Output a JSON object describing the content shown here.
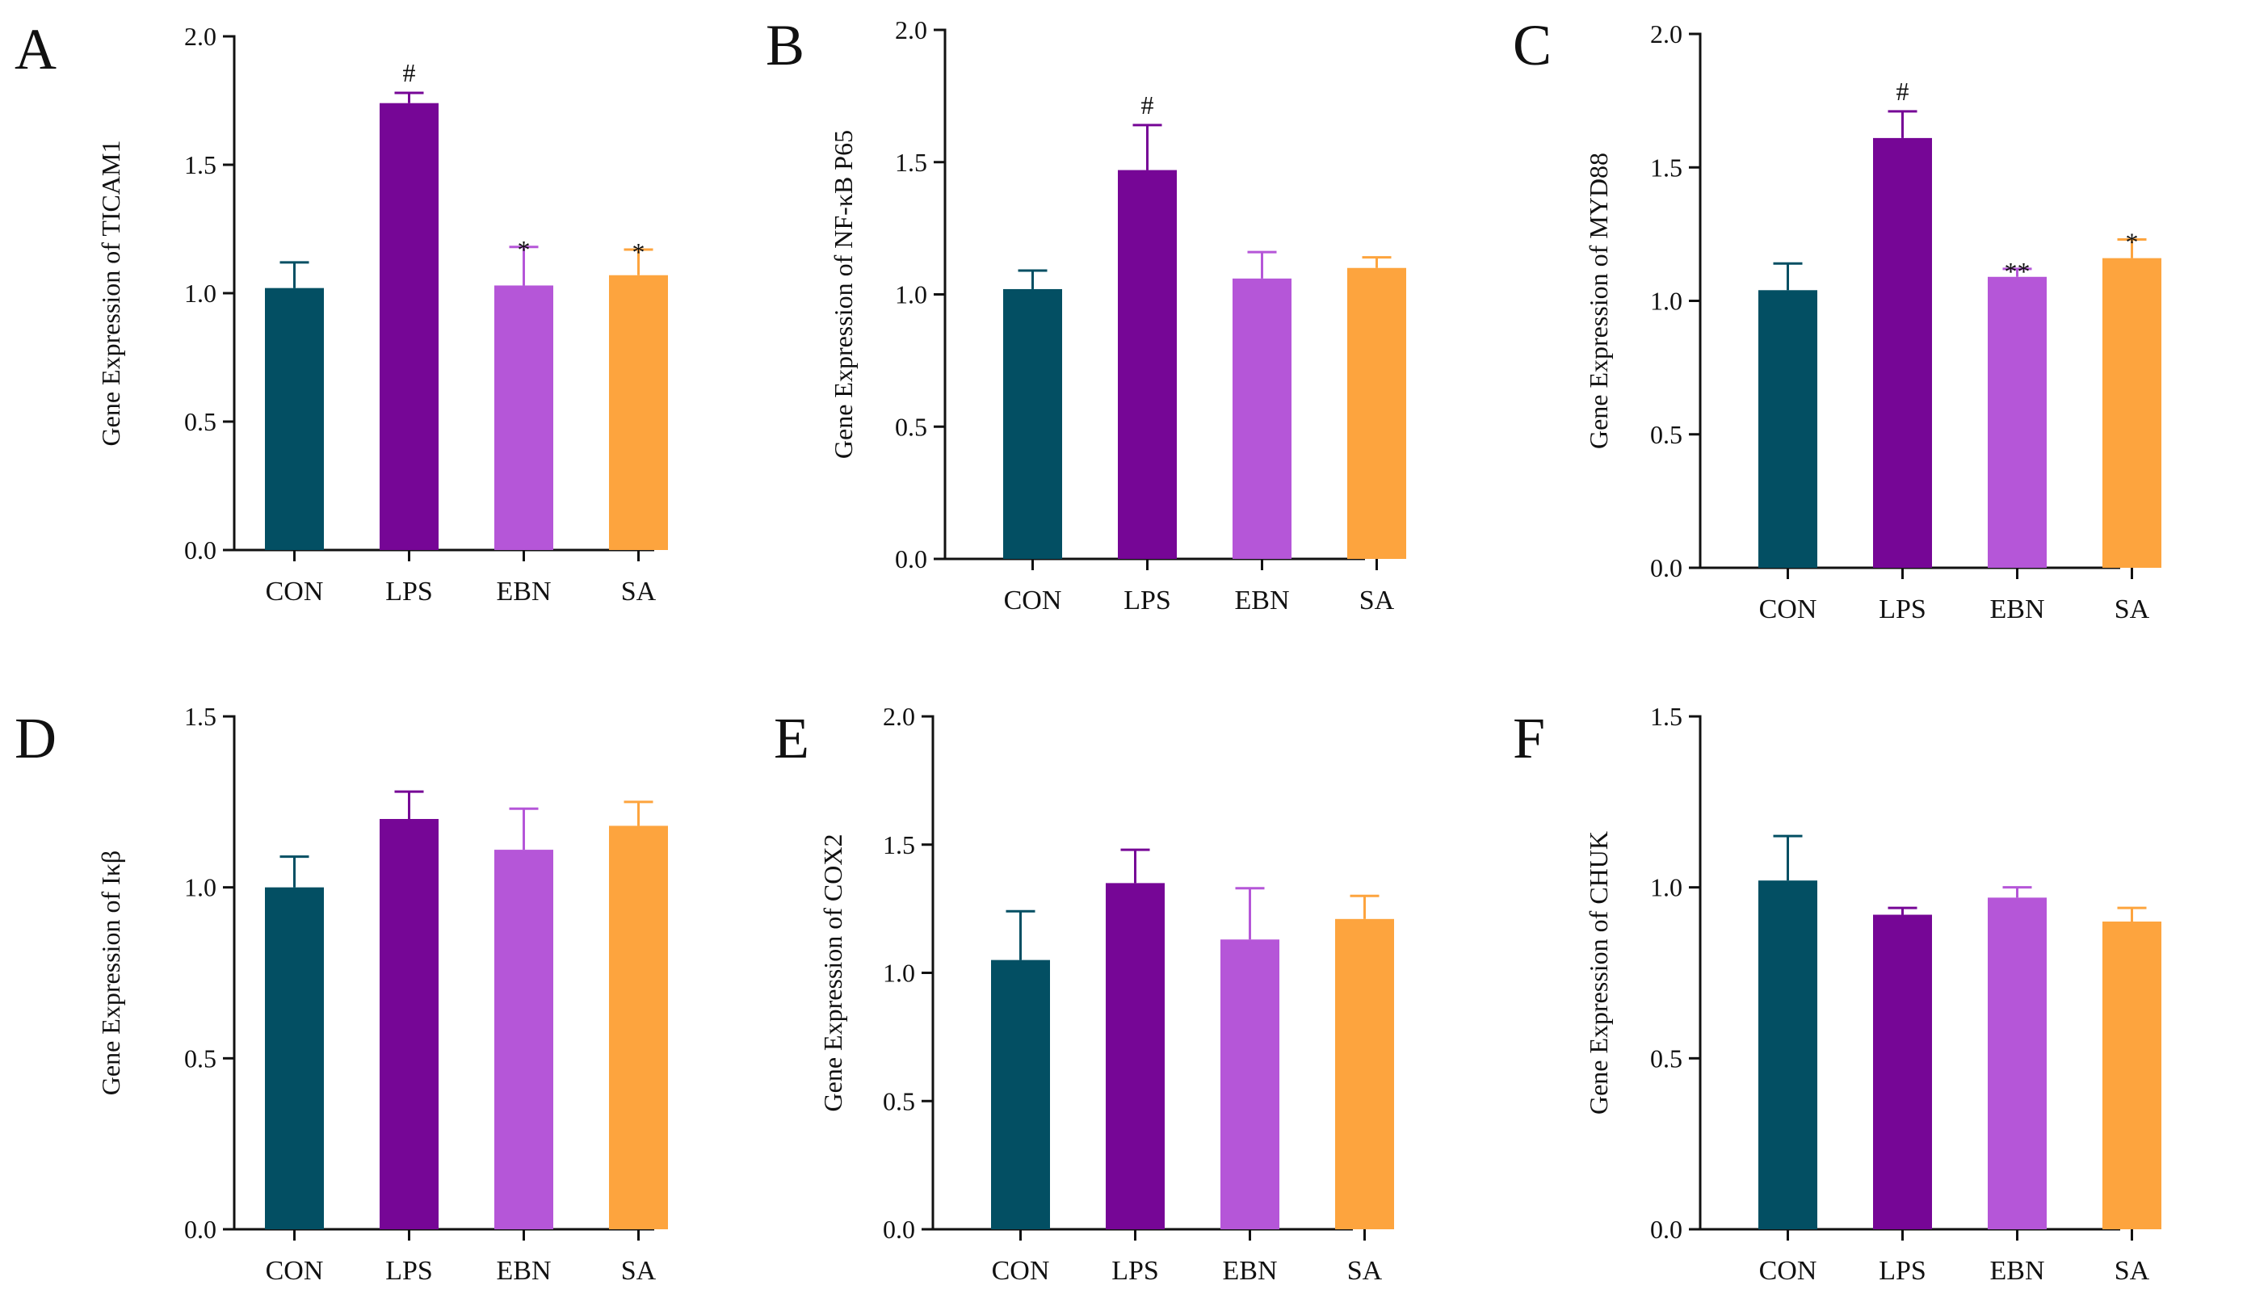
{
  "colors": {
    "CON": "#034f63",
    "LPS": "#760696",
    "EBN": "#b556d8",
    "SA": "#fda43e",
    "axis": "#111111"
  },
  "chart_data": [
    {
      "panel": "A",
      "type": "bar",
      "ylabel": "Gene Expression of TICAM1",
      "ylim": [
        0,
        2.0
      ],
      "yticks": [
        "0.0",
        "0.5",
        "1.0",
        "1.5",
        "2.0"
      ],
      "categories": [
        "CON",
        "LPS",
        "EBN",
        "SA"
      ],
      "values": [
        1.02,
        1.74,
        1.03,
        1.07
      ],
      "errors": [
        0.1,
        0.04,
        0.15,
        0.1
      ],
      "annotations": [
        "",
        "#",
        "*",
        "*"
      ]
    },
    {
      "panel": "B",
      "type": "bar",
      "ylabel": "Gene Expression of NF-κB P65",
      "ylim": [
        0,
        2.0
      ],
      "yticks": [
        "0.0",
        "0.5",
        "1.0",
        "1.5",
        "2.0"
      ],
      "categories": [
        "CON",
        "LPS",
        "EBN",
        "SA"
      ],
      "values": [
        1.02,
        1.47,
        1.06,
        1.1
      ],
      "errors": [
        0.07,
        0.17,
        0.1,
        0.04
      ],
      "annotations": [
        "",
        "#",
        "",
        ""
      ]
    },
    {
      "panel": "C",
      "type": "bar",
      "ylabel": "Gene Expression of MYD88",
      "ylim": [
        0,
        2.0
      ],
      "yticks": [
        "0.0",
        "0.5",
        "1.0",
        "1.5",
        "2.0"
      ],
      "categories": [
        "CON",
        "LPS",
        "EBN",
        "SA"
      ],
      "values": [
        1.04,
        1.61,
        1.09,
        1.16
      ],
      "errors": [
        0.1,
        0.1,
        0.03,
        0.07
      ],
      "annotations": [
        "",
        "#",
        "**",
        "*"
      ]
    },
    {
      "panel": "D",
      "type": "bar",
      "ylabel": "Gene Expression of Iκβ",
      "ylim": [
        0,
        1.5
      ],
      "yticks": [
        "0.0",
        "0.5",
        "1.0",
        "1.5"
      ],
      "categories": [
        "CON",
        "LPS",
        "EBN",
        "SA"
      ],
      "values": [
        1.0,
        1.2,
        1.11,
        1.18
      ],
      "errors": [
        0.09,
        0.08,
        0.12,
        0.07
      ],
      "annotations": [
        "",
        "",
        "",
        ""
      ]
    },
    {
      "panel": "E",
      "type": "bar",
      "ylabel": "Gene Expression of COX2",
      "ylim": [
        0,
        2.0
      ],
      "yticks": [
        "0.0",
        "0.5",
        "1.0",
        "1.5",
        "2.0"
      ],
      "categories": [
        "CON",
        "LPS",
        "EBN",
        "SA"
      ],
      "values": [
        1.05,
        1.35,
        1.13,
        1.21
      ],
      "errors": [
        0.19,
        0.13,
        0.2,
        0.09
      ],
      "annotations": [
        "",
        "",
        "",
        ""
      ]
    },
    {
      "panel": "F",
      "type": "bar",
      "ylabel": "Gene Expression of CHUK",
      "ylim": [
        0,
        1.5
      ],
      "yticks": [
        "0.0",
        "0.5",
        "1.0",
        "1.5"
      ],
      "categories": [
        "CON",
        "LPS",
        "EBN",
        "SA"
      ],
      "values": [
        1.02,
        0.92,
        0.97,
        0.9
      ],
      "errors": [
        0.13,
        0.02,
        0.03,
        0.04
      ],
      "annotations": [
        "",
        "",
        "",
        ""
      ]
    }
  ]
}
